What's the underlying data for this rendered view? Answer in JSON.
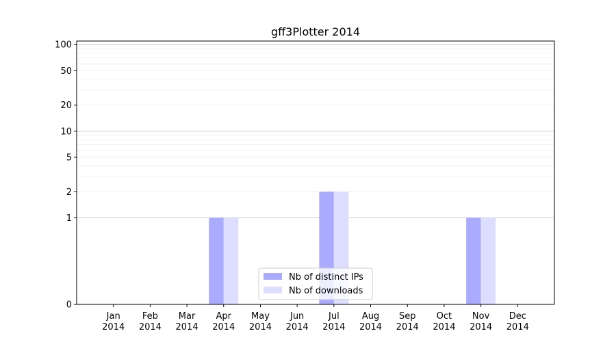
{
  "chart_data": {
    "type": "bar",
    "title": "gff3Plotter 2014",
    "xlabel": "",
    "ylabel": "",
    "y_scale": "symlog",
    "ylim": [
      0,
      110
    ],
    "y_ticks": [
      0,
      1,
      2,
      5,
      10,
      20,
      50,
      100
    ],
    "grid": true,
    "legend_position": "lower-center",
    "categories": [
      "Jan\n2014",
      "Feb\n2014",
      "Mar\n2014",
      "Apr\n2014",
      "May\n2014",
      "Jun\n2014",
      "Jul\n2014",
      "Aug\n2014",
      "Sep\n2014",
      "Oct\n2014",
      "Nov\n2014",
      "Dec\n2014"
    ],
    "series": [
      {
        "name": "Nb of distinct IPs",
        "color": "#aaaaff",
        "values": [
          0,
          0,
          0,
          1,
          0,
          0,
          2,
          0,
          0,
          0,
          1,
          0
        ]
      },
      {
        "name": "Nb of downloads",
        "color": "#ddddff",
        "values": [
          0,
          0,
          0,
          1,
          0,
          0,
          2,
          0,
          0,
          0,
          1,
          0
        ]
      }
    ]
  }
}
